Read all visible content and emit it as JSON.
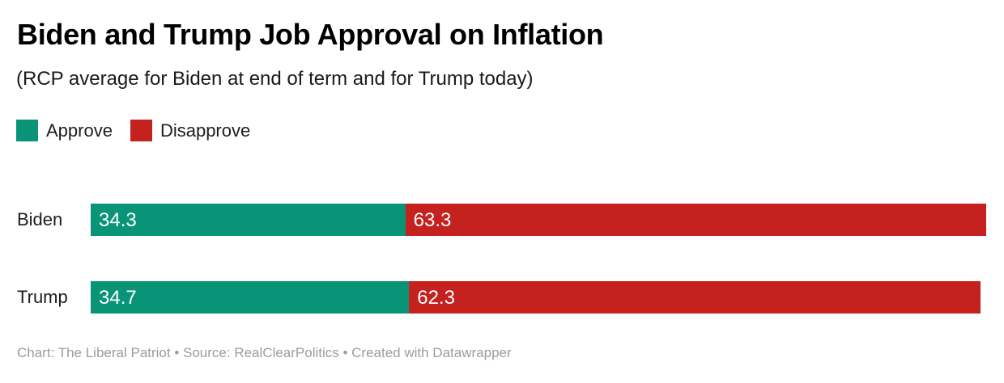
{
  "chart_data": {
    "type": "bar",
    "orientation": "horizontal",
    "stacked": true,
    "title": "Biden and Trump Job Approval on Inflation",
    "subtitle": "(RCP average for Biden at end of term and for Trump today)",
    "footer": "Chart: The Liberal Patriot • Source: RealClearPolitics • Created with Datawrapper",
    "categories": [
      "Biden",
      "Trump"
    ],
    "series": [
      {
        "name": "Approve",
        "color": "#0a9477",
        "values": [
          34.3,
          34.7
        ]
      },
      {
        "name": "Disapprove",
        "color": "#c4211f",
        "values": [
          63.3,
          62.3
        ]
      }
    ],
    "value_labels": true,
    "legend_position": "top-left",
    "grid": false,
    "axis": {
      "min": 0,
      "max_stack_total": 97.6
    },
    "colors": {
      "approve": "#0a9477",
      "disapprove": "#c4211f",
      "value_text": "#ffffff",
      "footer_text": "#9c9c9c"
    }
  }
}
